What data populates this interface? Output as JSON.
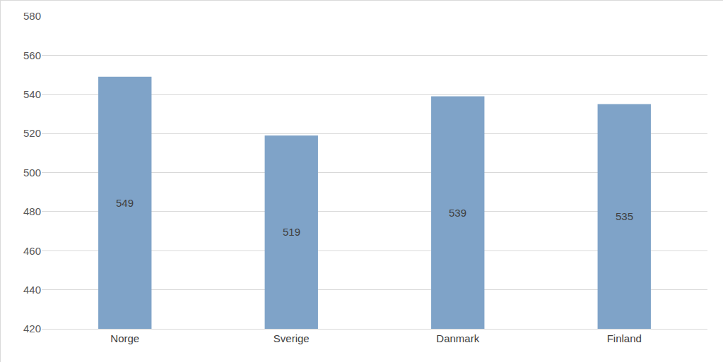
{
  "chart_data": {
    "type": "bar",
    "categories": [
      "Norge",
      "Sverige",
      "Danmark",
      "Finland"
    ],
    "values": [
      549,
      519,
      539,
      535
    ],
    "color": "#7fa3c8",
    "ylim": [
      420,
      580
    ],
    "yticks": [
      420,
      440,
      460,
      480,
      500,
      520,
      540,
      560,
      580
    ],
    "grid": true,
    "data_labels": true
  }
}
